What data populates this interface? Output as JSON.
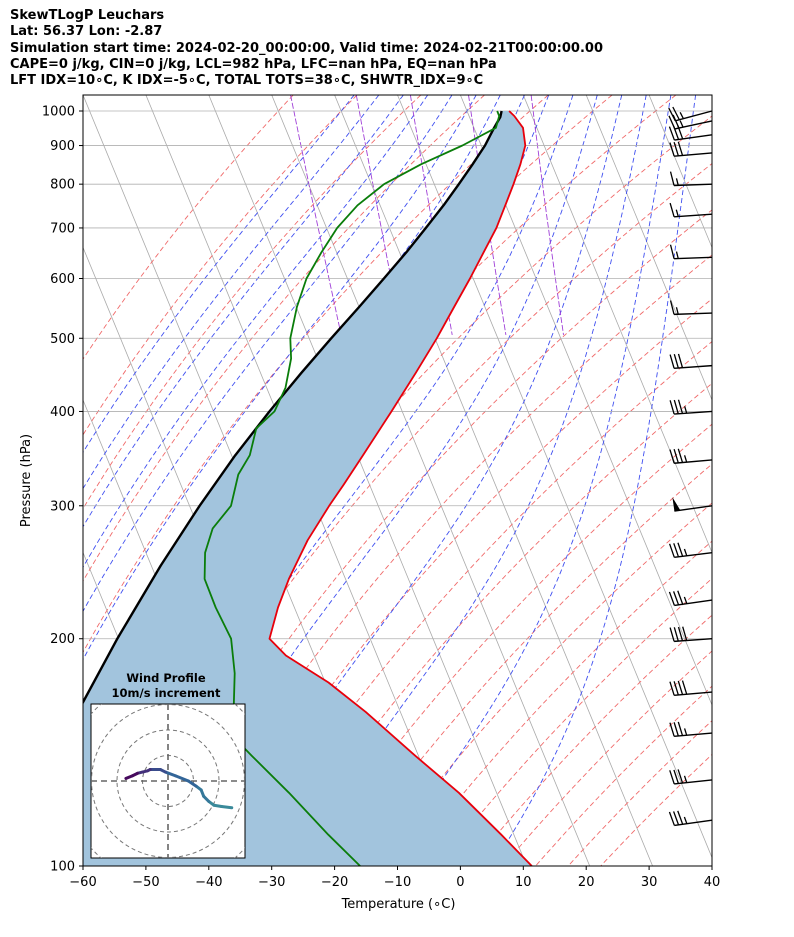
{
  "header": {
    "lines": [
      "SkewTLogP Leuchars",
      "Lat: 56.37   Lon: -2.87",
      "Simulation start time: 2024-02-20_00:00:00, Valid time: 2024-02-21T00:00:00.00",
      "CAPE=0 j/kg, CIN=0 j/kg, LCL=982 hPa, LFC=nan hPa, EQ=nan hPa",
      "LFT IDX=10∘C, K IDX=-5∘C, TOTAL TOTS=38∘C, SHWTR_IDX=9∘C"
    ]
  },
  "chart_data": [
    {
      "type": "line",
      "subtype": "skew-T log-P diagram",
      "xlabel": "Temperature (∘C)",
      "ylabel": "Pressure (hPa)",
      "xlim": [
        -60,
        40
      ],
      "ylim": [
        1050,
        100
      ],
      "y_scale": "log",
      "x_ticks": [
        "−60",
        "−50",
        "−40",
        "−30",
        "−20",
        "−10",
        "0",
        "10",
        "20",
        "30",
        "40"
      ],
      "y_ticks": [
        1000,
        900,
        800,
        700,
        600,
        500,
        400,
        300,
        200,
        100
      ],
      "grid": true,
      "colors": {
        "temperature": "#e8000b",
        "dewpoint": "#0a7d0a",
        "parcel": "#000000",
        "shade": "#a2c4dd",
        "isotherm": "#aaaaaa",
        "dry_adiabat": "#f06a6a",
        "moist_adiabat": "#3f4ff0",
        "mixing_ratio": "#a040d8"
      },
      "series": [
        {
          "key": "temperature",
          "pressure": [
            1000,
            985,
            950,
            900,
            850,
            800,
            750,
            700,
            650,
            600,
            550,
            500,
            450,
            400,
            350,
            320,
            300,
            270,
            240,
            220,
            200,
            190,
            175,
            160,
            140,
            125,
            110,
            100
          ],
          "temperature": [
            6.7,
            7.2,
            7.8,
            7.0,
            5.0,
            2.6,
            -0.1,
            -3.0,
            -6.6,
            -10.5,
            -14.9,
            -19.7,
            -25.3,
            -31.7,
            -39.1,
            -44.1,
            -47.8,
            -53.5,
            -59.0,
            -62.6,
            -66.0,
            -64.5,
            -59.5,
            -55.5,
            -50.5,
            -46.0,
            -42.0,
            -39.2
          ]
        },
        {
          "key": "dewpoint",
          "pressure": [
            1000,
            985,
            950,
            900,
            850,
            800,
            750,
            700,
            650,
            600,
            550,
            500,
            470,
            430,
            400,
            380,
            350,
            330,
            300,
            280,
            260,
            240,
            220,
            200,
            180,
            160,
            150,
            140,
            125,
            110,
            100
          ],
          "temperature": [
            4.8,
            4.8,
            3.5,
            -3.0,
            -10.8,
            -18.0,
            -23.6,
            -28.3,
            -32.4,
            -36.5,
            -39.9,
            -43.0,
            -44.2,
            -47.0,
            -50.3,
            -54.3,
            -57.1,
            -60.2,
            -63.4,
            -67.8,
            -70.6,
            -72.4,
            -72.5,
            -72.1,
            -73.8,
            -76.5,
            -78.5,
            -76.5,
            -73.0,
            -69.5,
            -66.5
          ]
        },
        {
          "key": "parcel",
          "pressure": [
            1000,
            982,
            950,
            900,
            850,
            800,
            750,
            700,
            650,
            600,
            550,
            500,
            450,
            400,
            350,
            300,
            250,
            200,
            150,
            100
          ],
          "temperature": [
            5.5,
            4.9,
            3.2,
            0.6,
            -2.6,
            -6.1,
            -9.9,
            -14.2,
            -18.9,
            -24.2,
            -30.0,
            -36.5,
            -43.5,
            -51.1,
            -59.4,
            -68.4,
            -78.5,
            -90.2,
            -104.5,
            -124.3
          ]
        }
      ],
      "barbs_kt": [
        {
          "p": 1000,
          "dir": 255,
          "spd": 25
        },
        {
          "p": 970,
          "dir": 258,
          "spd": 25
        },
        {
          "p": 930,
          "dir": 262,
          "spd": 30
        },
        {
          "p": 880,
          "dir": 265,
          "spd": 30
        },
        {
          "p": 800,
          "dir": 268,
          "spd": 15
        },
        {
          "p": 730,
          "dir": 266,
          "spd": 15
        },
        {
          "p": 640,
          "dir": 268,
          "spd": 15
        },
        {
          "p": 540,
          "dir": 268,
          "spd": 15
        },
        {
          "p": 460,
          "dir": 266,
          "spd": 30
        },
        {
          "p": 400,
          "dir": 266,
          "spd": 35
        },
        {
          "p": 345,
          "dir": 265,
          "spd": 35
        },
        {
          "p": 300,
          "dir": 262,
          "spd": 50
        },
        {
          "p": 260,
          "dir": 263,
          "spd": 35
        },
        {
          "p": 225,
          "dir": 262,
          "spd": 35
        },
        {
          "p": 200,
          "dir": 266,
          "spd": 40
        },
        {
          "p": 170,
          "dir": 265,
          "spd": 40
        },
        {
          "p": 150,
          "dir": 265,
          "spd": 35
        },
        {
          "p": 130,
          "dir": 264,
          "spd": 35
        },
        {
          "p": 115,
          "dir": 262,
          "spd": 35
        }
      ]
    },
    {
      "type": "line",
      "subtype": "hodograph",
      "title": "Wind Profile",
      "subtitle": "10m/s increment",
      "ring_spacing_ms": 10,
      "u_ms": [
        25.0,
        21.0,
        18.0,
        16.0,
        14.0,
        13.0,
        11.0,
        8.0,
        3.0,
        -1.0,
        -3.0,
        -5.0,
        -7.0,
        -8.0,
        -10.0,
        -12.0,
        -14.0,
        -16.5
      ],
      "v_ms": [
        -10.5,
        -10.0,
        -9.5,
        -8.0,
        -6.0,
        -3.5,
        -2.0,
        0.0,
        2.0,
        3.5,
        4.5,
        4.5,
        4.5,
        4.0,
        3.5,
        3.0,
        2.0,
        1.0
      ]
    }
  ]
}
